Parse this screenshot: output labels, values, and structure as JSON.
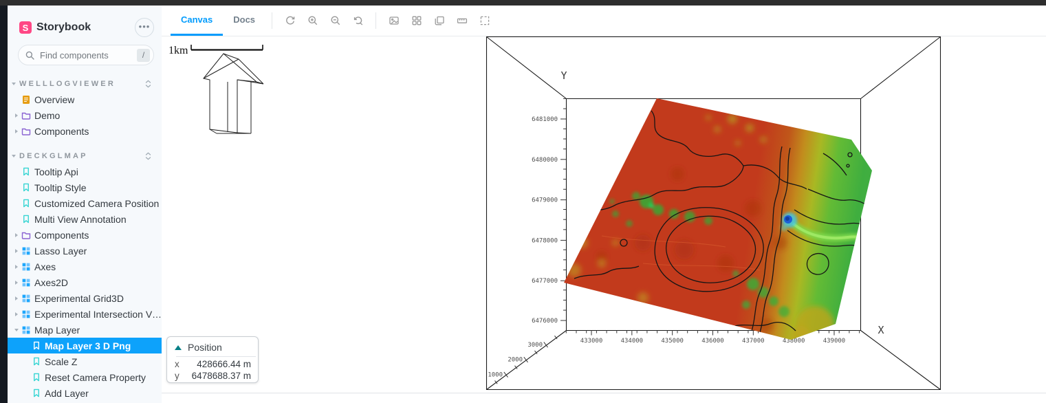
{
  "sidebar": {
    "brand": "Storybook",
    "menu_icon": "ellipsis-icon",
    "search": {
      "placeholder": "Find components",
      "shortcut": "/"
    },
    "sections": [
      {
        "title": "WELLLOGVIEWER",
        "items": [
          {
            "label": "Overview",
            "icon": "document-icon",
            "caret": null,
            "indent": 1,
            "selected": false
          },
          {
            "label": "Demo",
            "icon": "folder-icon",
            "caret": "right",
            "indent": 1,
            "selected": false
          },
          {
            "label": "Components",
            "icon": "folder-icon",
            "caret": "right",
            "indent": 1,
            "selected": false
          }
        ]
      },
      {
        "title": "DECKGLMAP",
        "items": [
          {
            "label": "Tooltip Api",
            "icon": "bookmark-icon",
            "caret": null,
            "indent": 1,
            "selected": false
          },
          {
            "label": "Tooltip Style",
            "icon": "bookmark-icon",
            "caret": null,
            "indent": 1,
            "selected": false
          },
          {
            "label": "Customized Camera Position",
            "icon": "bookmark-icon",
            "caret": null,
            "indent": 1,
            "selected": false
          },
          {
            "label": "Multi View Annotation",
            "icon": "bookmark-icon",
            "caret": null,
            "indent": 1,
            "selected": false
          },
          {
            "label": "Components",
            "icon": "folder-icon",
            "caret": "right",
            "indent": 1,
            "selected": false
          },
          {
            "label": "Lasso Layer",
            "icon": "component-icon",
            "caret": "right",
            "indent": 1,
            "selected": false
          },
          {
            "label": "Axes",
            "icon": "component-icon",
            "caret": "right",
            "indent": 1,
            "selected": false
          },
          {
            "label": "Axes2D",
            "icon": "component-icon",
            "caret": "right",
            "indent": 1,
            "selected": false
          },
          {
            "label": "Experimental Grid3D",
            "icon": "component-icon",
            "caret": "right",
            "indent": 1,
            "selected": false
          },
          {
            "label": "Experimental Intersection View",
            "icon": "component-icon",
            "caret": "right",
            "indent": 1,
            "selected": false
          },
          {
            "label": "Map Layer",
            "icon": "component-icon",
            "caret": "down",
            "indent": 1,
            "selected": false
          },
          {
            "label": "Map Layer 3 D Png",
            "icon": "bookmark-icon",
            "caret": null,
            "indent": 2,
            "selected": true
          },
          {
            "label": "Scale Z",
            "icon": "bookmark-icon",
            "caret": null,
            "indent": 2,
            "selected": false
          },
          {
            "label": "Reset Camera Property",
            "icon": "bookmark-icon",
            "caret": null,
            "indent": 2,
            "selected": false
          },
          {
            "label": "Add Layer",
            "icon": "bookmark-icon",
            "caret": null,
            "indent": 2,
            "selected": false
          }
        ]
      }
    ]
  },
  "toolbar": {
    "tabs": [
      {
        "label": "Canvas",
        "active": true
      },
      {
        "label": "Docs",
        "active": false
      }
    ],
    "icons": [
      "remount-icon",
      "zoom-in-icon",
      "zoom-out-icon",
      "zoom-reset-icon",
      "background-icon",
      "grid-icon",
      "viewport-icon",
      "measure-icon",
      "outline-icon"
    ]
  },
  "scene": {
    "scale_label": "1km",
    "axis_x_label": "X",
    "axis_y_label": "Y",
    "y_ticks": [
      "6481000",
      "6480000",
      "6479000",
      "6478000",
      "6477000",
      "6476000"
    ],
    "x_ticks": [
      "433000",
      "434000",
      "435000",
      "436000",
      "437000",
      "438000",
      "439000"
    ],
    "z_ticks": [
      "3000",
      "2000",
      "1000"
    ]
  },
  "position_panel": {
    "title": "Position",
    "rows": [
      {
        "axis": "x",
        "value": "428666.44 m"
      },
      {
        "axis": "y",
        "value": "6478688.37 m"
      }
    ]
  },
  "colors": {
    "accent": "#029CFD",
    "selected_bg": "#0DA2FB",
    "brand_pink": "#FF4785",
    "story_teal": "#37D5D3",
    "folder_purple": "#8A63D2",
    "component_blue": "#1EA7FD",
    "doc_orange": "#E69D13",
    "position_triangle_teal": "#077F86",
    "terrain_red": "#C23A1C",
    "terrain_green": "#41AD3E"
  }
}
